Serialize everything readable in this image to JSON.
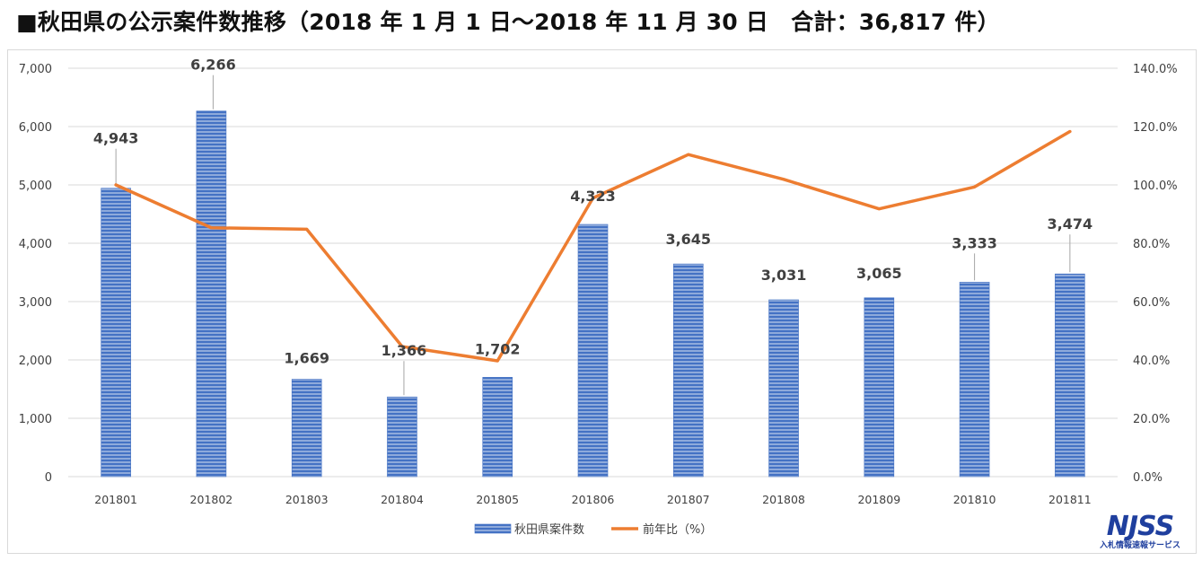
{
  "title": "■秋田県の公示案件数推移（2018 年 1 月 1 日～2018 年 11 月 30 日　合計：36,817 件）",
  "chart_data": {
    "type": "bar",
    "categories": [
      "201801",
      "201802",
      "201803",
      "201804",
      "201805",
      "201806",
      "201807",
      "201808",
      "201809",
      "201810",
      "201811"
    ],
    "series": [
      {
        "name": "秋田県案件数",
        "type": "bar",
        "axis": "left",
        "values": [
          4943,
          6266,
          1669,
          1366,
          1702,
          4323,
          3645,
          3031,
          3065,
          3333,
          3474
        ],
        "data_labels": [
          "4,943",
          "6,266",
          "1,669",
          "1,366",
          "1,702",
          "4,323",
          "3,645",
          "3,031",
          "3,065",
          "3,333",
          "3,474"
        ],
        "color": "#4472c4"
      },
      {
        "name": "前年比（%）",
        "type": "line",
        "axis": "right",
        "values": [
          100.0,
          85.3,
          84.8,
          44.6,
          39.7,
          95.5,
          110.4,
          101.9,
          91.8,
          99.3,
          118.3
        ],
        "color": "#ed7d31"
      }
    ],
    "y_left": {
      "range": [
        0,
        7000
      ],
      "ticks": [
        0,
        1000,
        2000,
        3000,
        4000,
        5000,
        6000,
        7000
      ],
      "tick_labels": [
        "0",
        "1,000",
        "2,000",
        "3,000",
        "4,000",
        "5,000",
        "6,000",
        "7,000"
      ]
    },
    "y_right": {
      "range": [
        0,
        140
      ],
      "ticks": [
        0,
        20,
        40,
        60,
        80,
        100,
        120,
        140
      ],
      "tick_labels": [
        "0.0%",
        "20.0%",
        "40.0%",
        "60.0%",
        "80.0%",
        "100.0%",
        "120.0%",
        "140.0%"
      ]
    },
    "grid": true,
    "legend_position": "bottom"
  },
  "logo": {
    "main": "NJSS",
    "sub": "入札情報速報サービス"
  }
}
